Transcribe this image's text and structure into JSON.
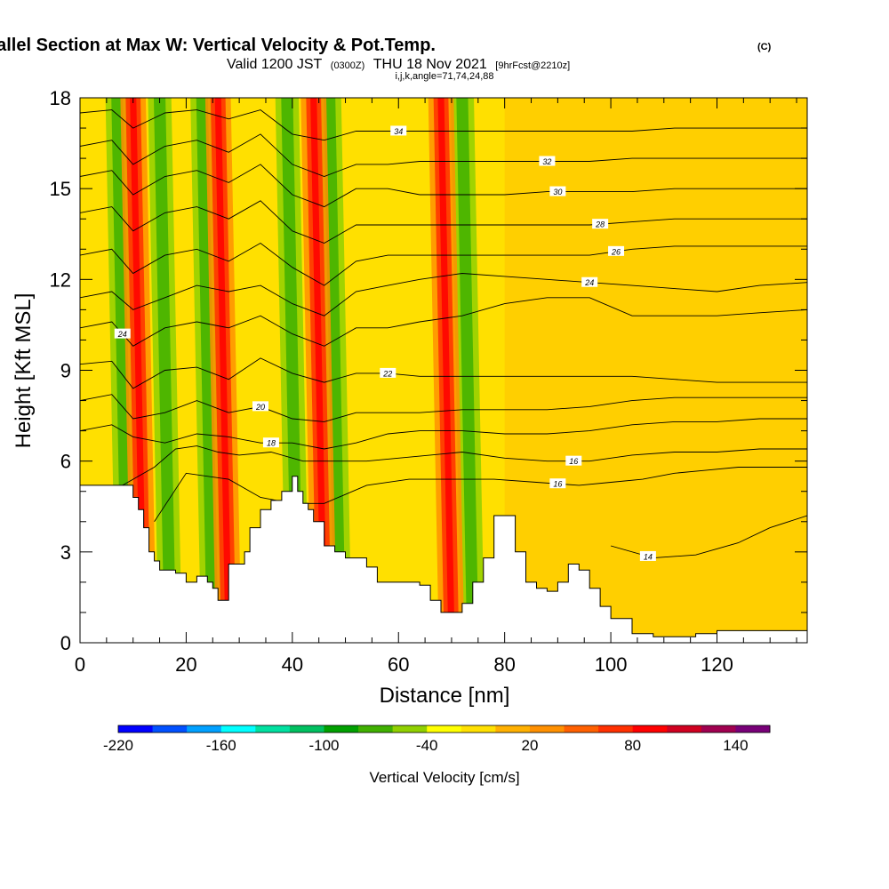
{
  "header": {
    "title": "Wind-Parallel Section at Max W: Vertical Velocity & Pot.Temp.",
    "title_mark": "(C)",
    "subtitle_a": "Valid 1200 JST",
    "subtitle_b": "(0300Z)",
    "subtitle_c": "THU 18 Nov 2021",
    "subtitle_d": "[9hrFcst@2210z]",
    "subtitle_e": "i,j,k,angle=71,74,24,88"
  },
  "chart_data": {
    "type": "heatmap",
    "xlabel": "Distance [nm]",
    "ylabel": "Height [Kft MSL]",
    "xlim": [
      0,
      137
    ],
    "ylim": [
      0,
      18
    ],
    "x_ticks": [
      0,
      20,
      40,
      60,
      80,
      100,
      120
    ],
    "y_ticks": [
      0,
      3,
      6,
      9,
      12,
      15,
      18
    ],
    "colorbar": {
      "title": "Vertical Velocity [cm/s]",
      "min": -220,
      "max": 160,
      "step": 20,
      "tick_values": [
        -220,
        -160,
        -100,
        -40,
        20,
        80,
        140
      ],
      "colors": [
        "#0000ff",
        "#0050ff",
        "#00a0ff",
        "#00ffff",
        "#00e0a0",
        "#00c060",
        "#00a000",
        "#40b000",
        "#90d000",
        "#ffff00",
        "#ffe000",
        "#ffb000",
        "#ff9000",
        "#ff6000",
        "#ff3000",
        "#ff0000",
        "#d00020",
        "#a00050",
        "#780078"
      ]
    },
    "updrafts_x_nm": [
      10,
      26,
      44,
      68
    ],
    "downdrafts_x_nm": [
      7,
      15,
      23,
      39,
      47,
      72
    ],
    "terrain": {
      "x": [
        0,
        4,
        8,
        10,
        11,
        12,
        13,
        14,
        15,
        16,
        18,
        20,
        22,
        24,
        25,
        26,
        27,
        28,
        29,
        30,
        31,
        32,
        34,
        36,
        38,
        40,
        41,
        42,
        43,
        44,
        46,
        48,
        50,
        52,
        54,
        56,
        58,
        60,
        62,
        64,
        66,
        68,
        70,
        72,
        74,
        76,
        78,
        80,
        82,
        84,
        86,
        88,
        90,
        92,
        94,
        96,
        98,
        100,
        104,
        108,
        112,
        116,
        120,
        124,
        128,
        132,
        137
      ],
      "y": [
        5.2,
        5.2,
        5.2,
        4.8,
        4.4,
        3.8,
        3.0,
        2.7,
        2.4,
        2.4,
        2.3,
        2.0,
        2.2,
        2.0,
        1.8,
        1.4,
        1.4,
        2.6,
        2.6,
        2.6,
        3.0,
        3.8,
        4.4,
        4.7,
        5.0,
        5.5,
        5.0,
        4.6,
        4.4,
        4.0,
        3.2,
        3.0,
        2.8,
        2.8,
        2.5,
        2.0,
        2.0,
        2.0,
        2.0,
        1.9,
        1.4,
        1.0,
        1.0,
        1.3,
        2.0,
        2.8,
        4.2,
        4.2,
        3.0,
        2.0,
        1.8,
        1.7,
        2.0,
        2.6,
        2.4,
        1.8,
        1.2,
        0.8,
        0.3,
        0.2,
        0.2,
        0.3,
        0.4,
        0.4,
        0.4,
        0.4,
        0.4
      ]
    },
    "theta_contours": [
      {
        "label": "14",
        "x": [
          100,
          108,
          116,
          124,
          130,
          137
        ],
        "y": [
          3.2,
          2.8,
          2.9,
          3.3,
          3.8,
          4.2
        ],
        "label_x": 107
      },
      {
        "label": "16",
        "x": [
          14,
          20,
          28,
          34,
          40,
          46,
          54,
          62,
          70,
          78,
          86,
          94,
          100,
          106,
          112,
          118,
          124,
          130,
          137
        ],
        "y": [
          4.0,
          5.6,
          5.4,
          4.8,
          4.6,
          4.6,
          5.2,
          5.4,
          5.4,
          5.4,
          5.3,
          5.2,
          5.3,
          5.4,
          5.6,
          5.7,
          5.8,
          5.8,
          5.8
        ],
        "label_x": 90
      },
      {
        "label": "16",
        "x": [
          6,
          10,
          14,
          18,
          22,
          26,
          30,
          36,
          42,
          48,
          54,
          60,
          66,
          72,
          80,
          88,
          96,
          104,
          112,
          120,
          128,
          137
        ],
        "y": [
          5.0,
          5.4,
          5.8,
          6.4,
          6.5,
          6.3,
          6.2,
          6.3,
          6.0,
          6.0,
          6.0,
          6.1,
          6.2,
          6.3,
          6.1,
          6.0,
          6.0,
          6.2,
          6.3,
          6.3,
          6.4,
          6.4
        ],
        "label_x": 93
      },
      {
        "label": "18",
        "x": [
          0,
          6,
          10,
          16,
          22,
          28,
          34,
          40,
          46,
          52,
          58,
          64,
          72,
          80,
          88,
          96,
          104,
          112,
          120,
          128,
          137
        ],
        "y": [
          7.0,
          7.2,
          6.8,
          6.6,
          6.9,
          6.8,
          6.6,
          6.6,
          6.4,
          6.6,
          6.9,
          7.0,
          7.0,
          6.9,
          6.9,
          7.0,
          7.2,
          7.3,
          7.3,
          7.4,
          7.4
        ],
        "label_x": 36
      },
      {
        "label": "20",
        "x": [
          0,
          6,
          10,
          16,
          22,
          28,
          34,
          40,
          46,
          52,
          58,
          64,
          72,
          80,
          88,
          96,
          104,
          112,
          120,
          128,
          137
        ],
        "y": [
          8.0,
          8.2,
          7.4,
          7.6,
          8.0,
          7.6,
          7.8,
          7.4,
          7.3,
          7.6,
          7.6,
          7.6,
          7.7,
          7.7,
          7.7,
          7.8,
          8.0,
          8.1,
          8.1,
          8.1,
          8.1
        ],
        "label_x": 34
      },
      {
        "label": "22",
        "x": [
          0,
          6,
          10,
          16,
          22,
          28,
          34,
          40,
          46,
          52,
          58,
          64,
          72,
          80,
          88,
          96,
          104,
          112,
          120,
          128,
          137
        ],
        "y": [
          9.2,
          9.3,
          8.4,
          9.0,
          9.1,
          8.7,
          9.4,
          8.9,
          8.6,
          8.9,
          8.9,
          8.8,
          8.8,
          8.8,
          8.8,
          8.8,
          8.8,
          8.7,
          8.6,
          8.6,
          8.6
        ],
        "label_x": 58
      },
      {
        "label": "24",
        "x": [
          0,
          6,
          10,
          16,
          22,
          28,
          34,
          40,
          46,
          52,
          58,
          64,
          72,
          80,
          88,
          96,
          104,
          112,
          120,
          128,
          137
        ],
        "y": [
          10.4,
          10.6,
          9.8,
          10.4,
          10.6,
          10.4,
          10.8,
          10.2,
          9.8,
          10.4,
          10.4,
          10.6,
          10.8,
          11.2,
          11.4,
          11.4,
          10.8,
          10.8,
          10.8,
          10.9,
          11.0
        ],
        "label_x": 8
      },
      {
        "label": "24",
        "x": [
          0,
          6,
          10,
          16,
          22,
          28,
          34,
          40,
          46,
          52,
          58,
          64,
          72,
          80,
          88,
          96,
          104,
          112,
          120,
          128,
          137
        ],
        "y": [
          11.4,
          11.6,
          11.0,
          11.4,
          11.8,
          11.6,
          11.8,
          11.2,
          10.8,
          11.6,
          11.8,
          12.0,
          12.2,
          12.1,
          12.0,
          11.9,
          11.8,
          11.7,
          11.6,
          11.8,
          11.9
        ],
        "label_x": 96
      },
      {
        "label": "26",
        "x": [
          0,
          6,
          10,
          16,
          22,
          28,
          34,
          40,
          46,
          52,
          58,
          64,
          72,
          80,
          88,
          96,
          104,
          112,
          120,
          128,
          137
        ],
        "y": [
          12.8,
          13.0,
          12.2,
          12.8,
          13.0,
          12.6,
          13.2,
          12.4,
          11.8,
          12.6,
          12.8,
          12.8,
          12.8,
          12.8,
          12.8,
          12.8,
          13.0,
          13.1,
          13.1,
          13.1,
          13.1
        ],
        "label_x": 101
      },
      {
        "label": "28",
        "x": [
          0,
          6,
          10,
          16,
          22,
          28,
          34,
          40,
          46,
          52,
          58,
          64,
          72,
          80,
          88,
          96,
          104,
          112,
          120,
          128,
          137
        ],
        "y": [
          14.2,
          14.4,
          13.6,
          14.2,
          14.4,
          14.0,
          14.6,
          13.6,
          13.2,
          13.8,
          13.8,
          13.8,
          13.8,
          13.8,
          13.8,
          13.8,
          13.9,
          14.0,
          14.0,
          14.0,
          14.0
        ],
        "label_x": 98
      },
      {
        "label": "30",
        "x": [
          0,
          6,
          10,
          16,
          22,
          28,
          34,
          40,
          46,
          52,
          58,
          64,
          72,
          80,
          88,
          96,
          104,
          112,
          120,
          128,
          137
        ],
        "y": [
          15.4,
          15.6,
          14.8,
          15.4,
          15.6,
          15.2,
          15.8,
          14.8,
          14.4,
          15.0,
          15.0,
          14.8,
          14.8,
          14.8,
          14.9,
          14.9,
          14.9,
          15.0,
          15.0,
          15.0,
          15.0
        ],
        "label_x": 90
      },
      {
        "label": "32",
        "x": [
          0,
          6,
          10,
          16,
          22,
          28,
          34,
          40,
          46,
          52,
          58,
          64,
          72,
          80,
          88,
          96,
          104,
          112,
          120,
          128,
          137
        ],
        "y": [
          16.4,
          16.6,
          15.8,
          16.4,
          16.6,
          16.2,
          16.8,
          15.8,
          15.4,
          15.8,
          15.8,
          15.9,
          15.9,
          15.9,
          15.9,
          15.9,
          16.0,
          16.0,
          16.0,
          16.0,
          16.0
        ],
        "label_x": 88
      },
      {
        "label": "34",
        "x": [
          0,
          6,
          10,
          16,
          22,
          28,
          34,
          40,
          46,
          52,
          58,
          64,
          72,
          80,
          88,
          96,
          104,
          112,
          120,
          128,
          137
        ],
        "y": [
          17.5,
          17.6,
          17.0,
          17.5,
          17.6,
          17.3,
          17.6,
          16.8,
          16.6,
          16.9,
          16.9,
          16.9,
          16.9,
          16.9,
          16.9,
          16.9,
          16.9,
          17.0,
          17.0,
          17.0,
          17.0
        ],
        "label_x": 60
      }
    ]
  }
}
